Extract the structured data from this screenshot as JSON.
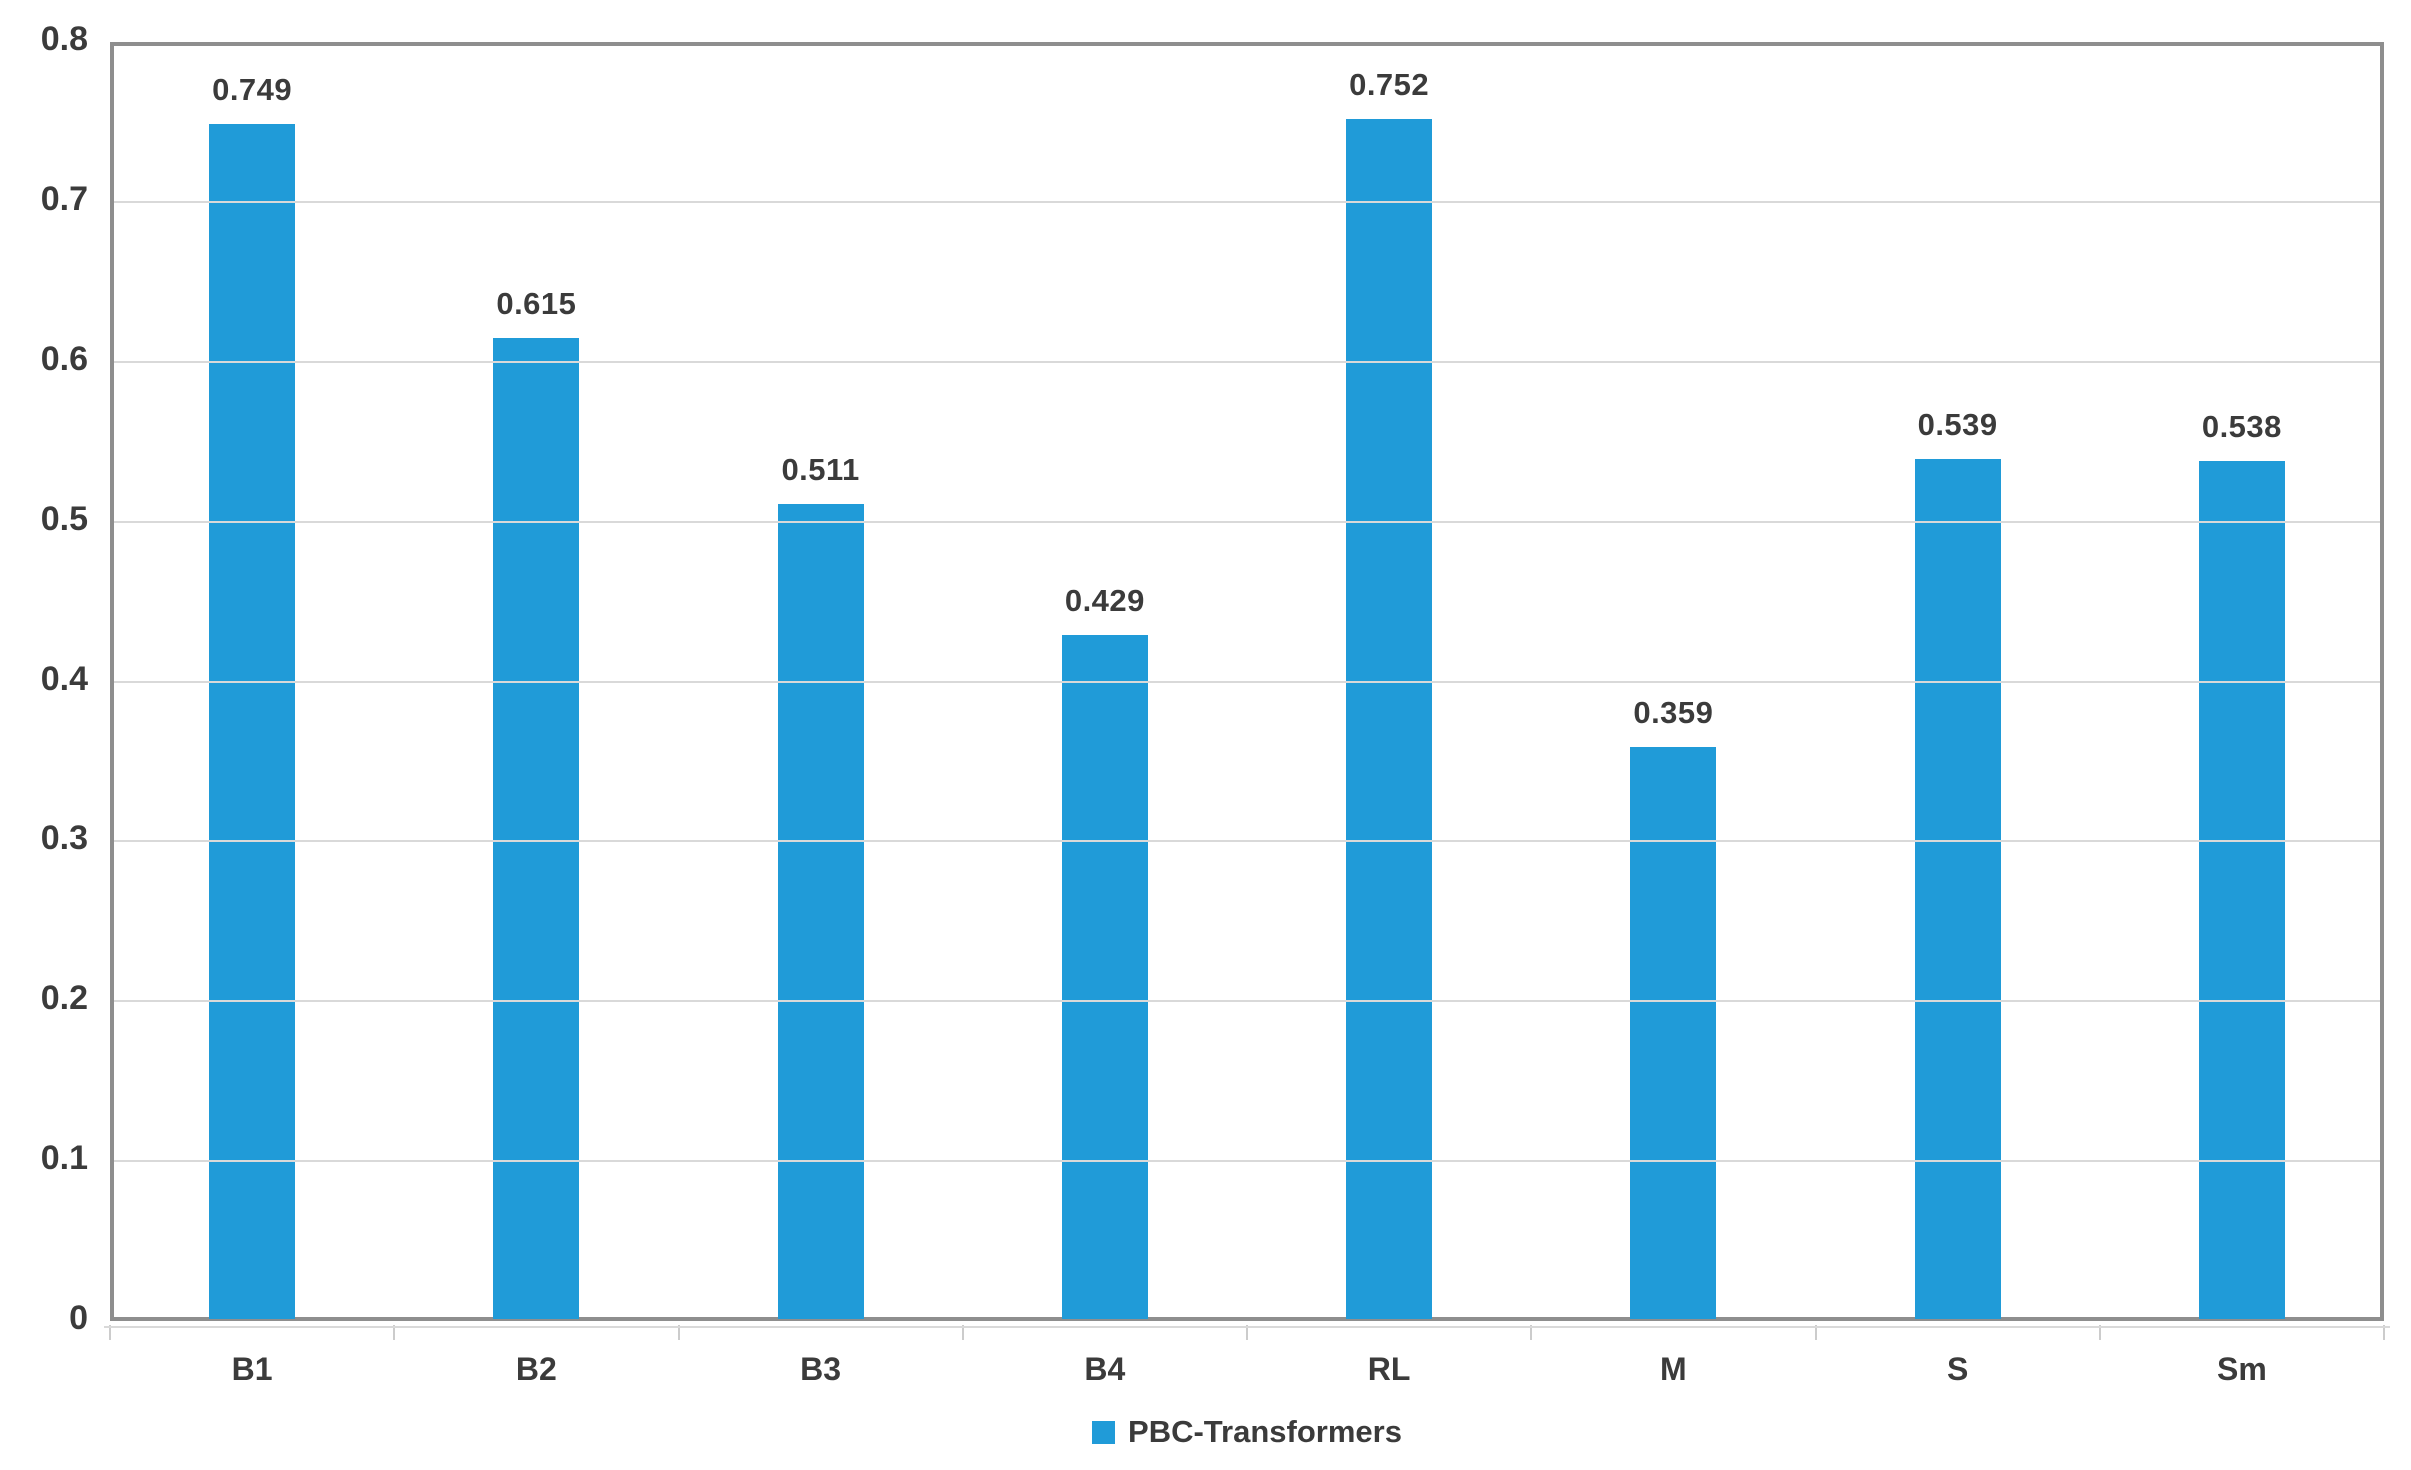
{
  "chart_data": {
    "type": "bar",
    "categories": [
      "B1",
      "B2",
      "B3",
      "B4",
      "RL",
      "M",
      "S",
      "Sm"
    ],
    "values": [
      0.749,
      0.615,
      0.511,
      0.429,
      0.752,
      0.359,
      0.539,
      0.538
    ],
    "value_labels": [
      "0.749",
      "0.615",
      "0.511",
      "0.429",
      "0.752",
      "0.359",
      "0.539",
      "0.538"
    ],
    "series_name": "PBC-Transformers",
    "title": "",
    "xlabel": "",
    "ylabel": "",
    "ylim": [
      0,
      0.8
    ],
    "ytick_step": 0.1,
    "ytick_labels": [
      "0",
      "0.1",
      "0.2",
      "0.3",
      "0.4",
      "0.5",
      "0.6",
      "0.7",
      "0.8"
    ],
    "grid": true,
    "legend": {
      "position": "bottom-center",
      "entries": [
        {
          "label": "PBC-Transformers",
          "color": "#209bd8"
        }
      ]
    }
  },
  "colors": {
    "bar": "#209bd8",
    "gridline": "#d9d9d9",
    "plot_border": "#8e8e8e",
    "text": "#3b3b3b",
    "background": "#ffffff"
  }
}
